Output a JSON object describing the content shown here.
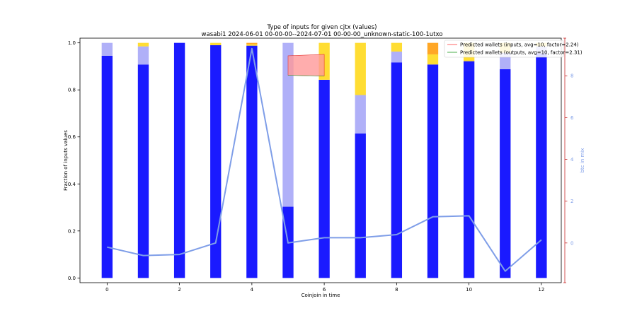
{
  "chart_data": {
    "type": "bar",
    "title": "Type of inputs for given cjtx (values)",
    "subtitle": "wasabi1 2024-06-01 00-00-00--2024-07-01 00-00-00_unknown-static-100-1utxo",
    "xlabel": "Coinjoin in time",
    "ylabel": "Fraction of inputs values",
    "y2label": "btc in mix",
    "xlim": [
      -0.75,
      12.55
    ],
    "ylim": [
      -0.02,
      1.02
    ],
    "y2lim": [
      -1.9,
      9.8
    ],
    "xticks": [
      0,
      2,
      4,
      6,
      8,
      10,
      12
    ],
    "yticks": [
      0.0,
      0.2,
      0.4,
      0.6,
      0.8,
      1.0
    ],
    "y2ticks": [
      0,
      2,
      4,
      6,
      8
    ],
    "x": [
      0,
      1,
      2,
      3,
      4,
      5,
      6,
      7,
      8,
      9,
      10,
      11,
      12
    ],
    "stacked": true,
    "series": [
      {
        "color": "#1a1aff",
        "values": [
          0.945,
          0.908,
          1.0,
          0.99,
          0.988,
          0.303,
          0.843,
          0.615,
          0.917,
          0.908,
          0.922,
          0.888,
          0.955
        ]
      },
      {
        "color": "#b0b0f8",
        "values": [
          0.055,
          0.077,
          0.0,
          0.0,
          0.0,
          0.697,
          0.0,
          0.163,
          0.046,
          0.0,
          0.0,
          0.07,
          0.03
        ]
      },
      {
        "color": "#ffdd33",
        "values": [
          0.0,
          0.015,
          0.0,
          0.01,
          0.006,
          0.0,
          0.157,
          0.222,
          0.037,
          0.043,
          0.078,
          0.042,
          0.015
        ]
      },
      {
        "color": "#ffa726",
        "values": [
          0.0,
          0.0,
          0.0,
          0.0,
          0.006,
          0.0,
          0.0,
          0.0,
          0.0,
          0.049,
          0.0,
          0.0,
          0.0
        ]
      }
    ],
    "btc_line": {
      "color": "#7f9ee8",
      "values": [
        -0.2,
        -0.6,
        -0.55,
        0.0,
        9.3,
        0.0,
        0.25,
        0.25,
        0.4,
        1.25,
        1.3,
        -1.35,
        0.15
      ]
    },
    "predicted_band": {
      "color": "#ff9999",
      "x_start": 5.0,
      "x_end": 6.0,
      "lower": [
        0.862,
        0.859
      ],
      "upper": [
        0.945,
        0.951
      ]
    },
    "legend": {
      "placement": "top-right",
      "entries": [
        {
          "label": "Predicted wallets (inputs, avg=10, factor=2.24)",
          "color": "#ff7f7f"
        },
        {
          "label": "Predicted wallets (outputs, avg=10, factor=2.31)",
          "color": "#66bb66"
        }
      ]
    }
  }
}
